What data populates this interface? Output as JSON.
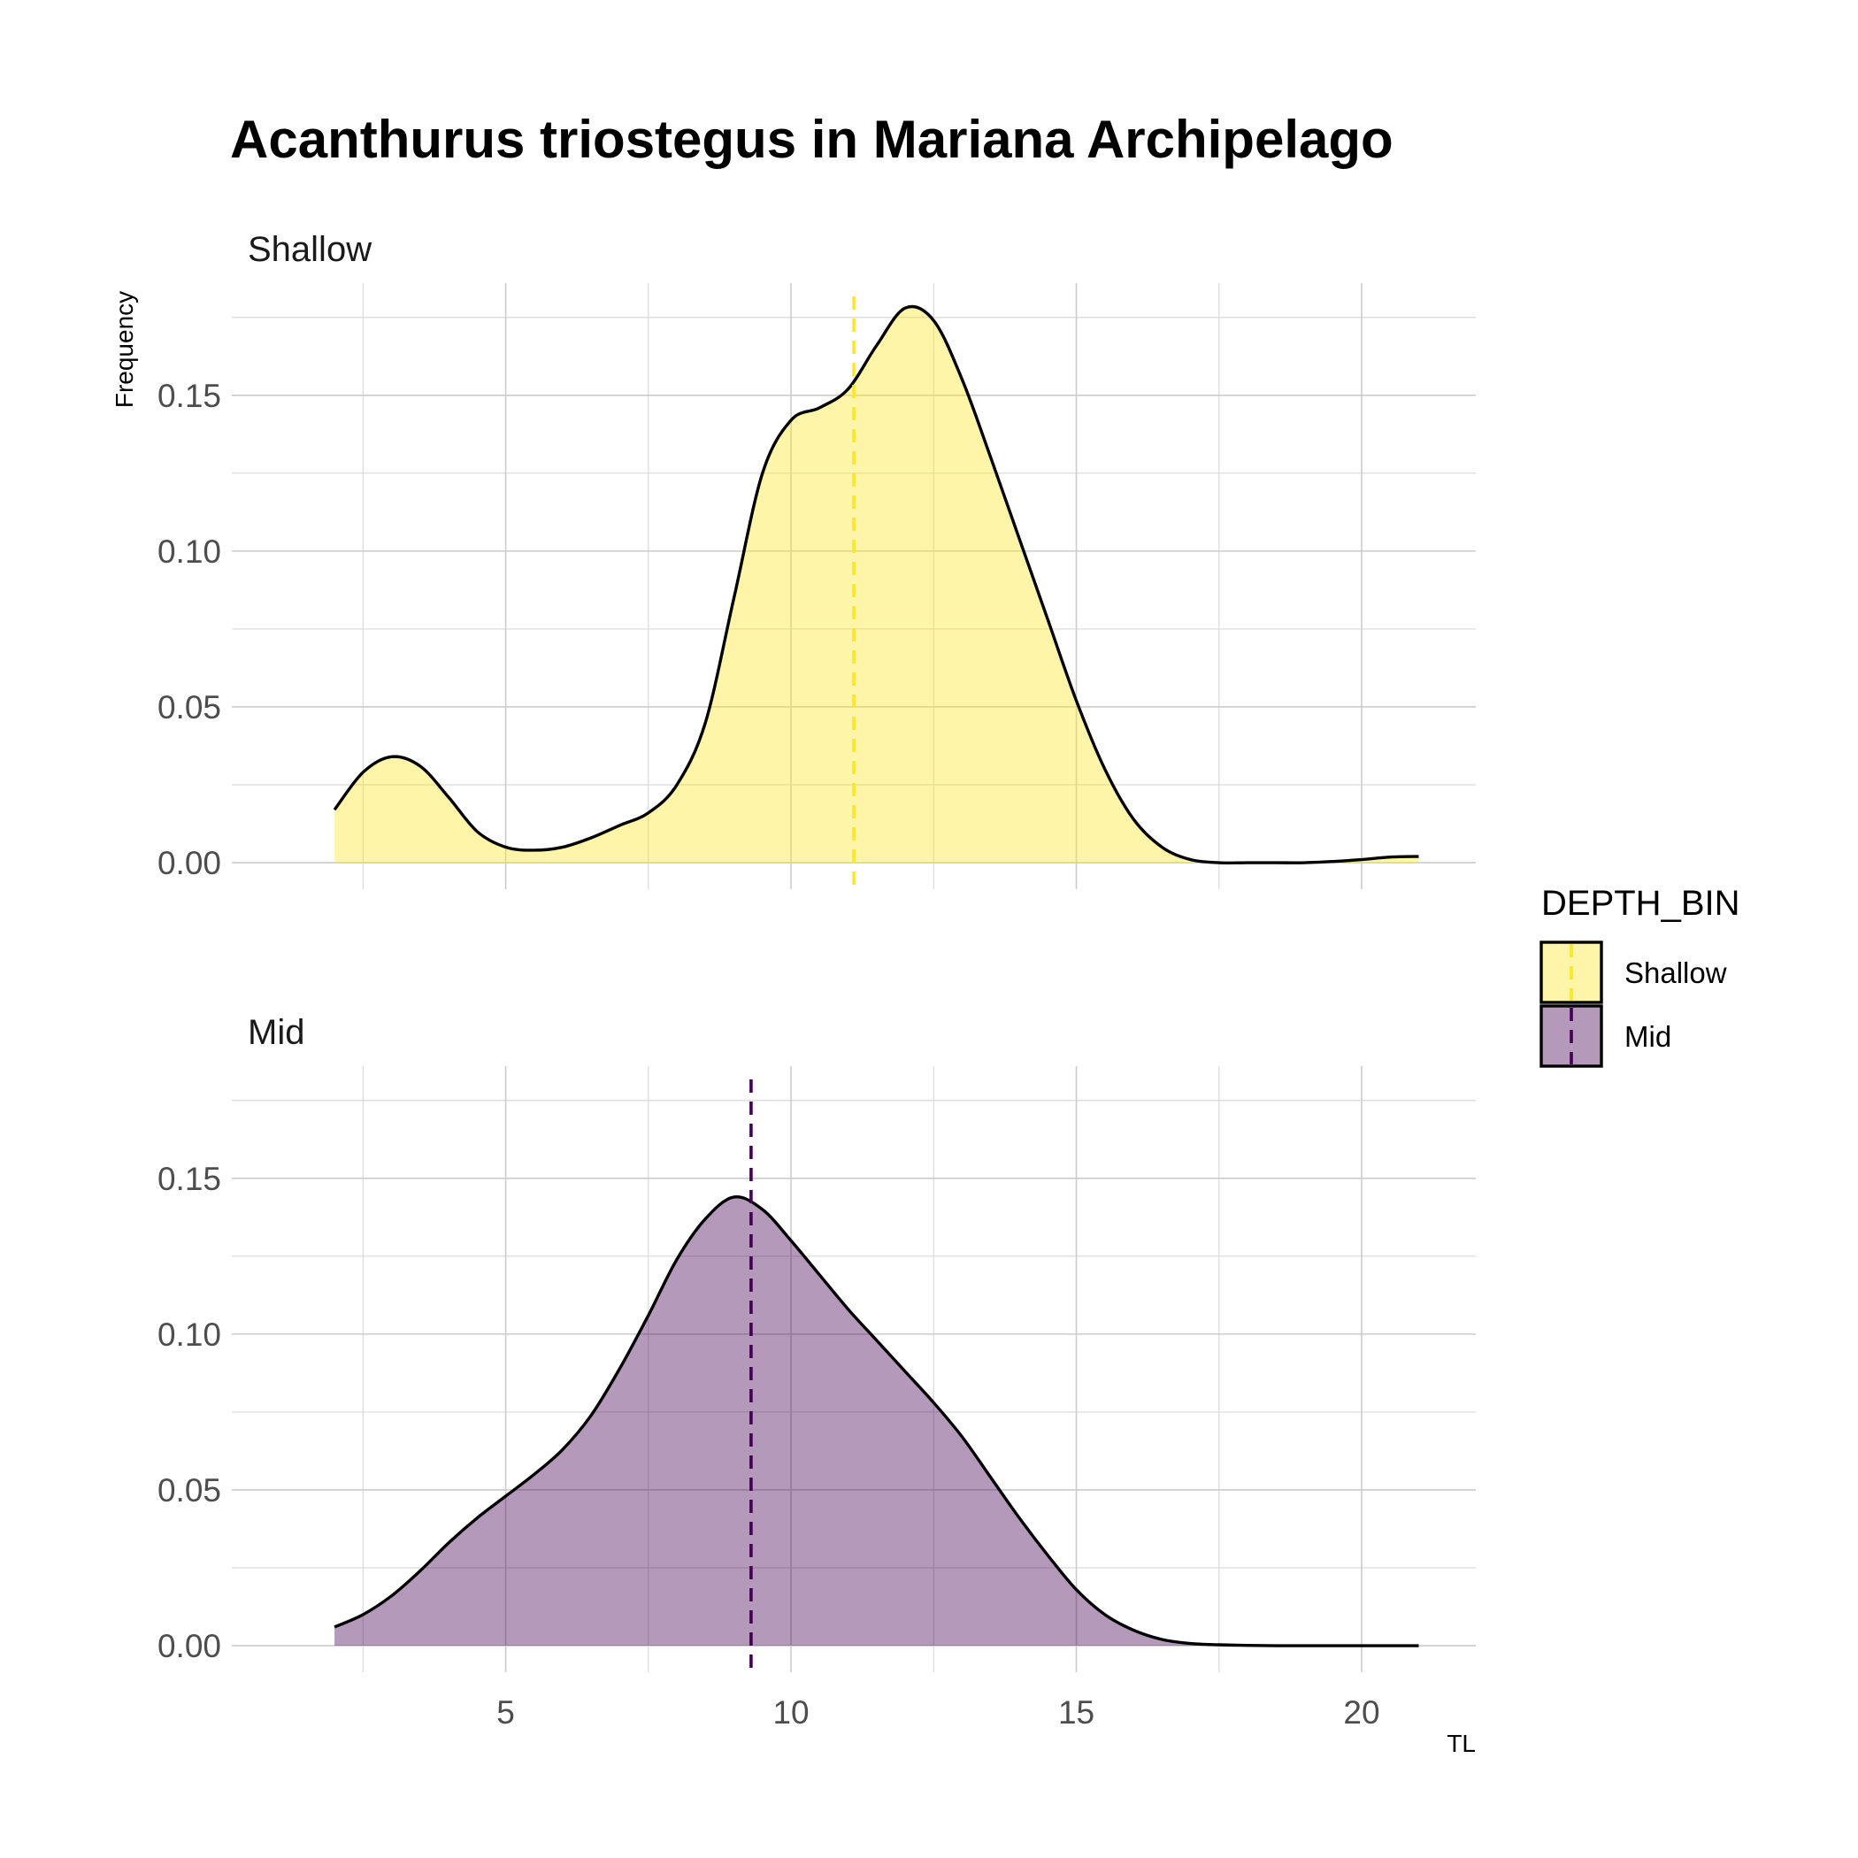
{
  "chart_data": {
    "type": "area",
    "title": "Acanthurus triostegus in Mariana Archipelago",
    "xlabel": "TL",
    "ylabel": "Frequency",
    "xlim": [
      0.2,
      22.0
    ],
    "ylim": [
      -0.0085,
      0.186
    ],
    "x_ticks": [
      5,
      10,
      15,
      20
    ],
    "x_tick_labels": [
      "5",
      "10",
      "15",
      "20"
    ],
    "y_ticks": [
      0,
      0.05,
      0.1,
      0.15
    ],
    "y_tick_labels": [
      "0.00",
      "0.05",
      "0.10",
      "0.15"
    ],
    "grid": true,
    "legend": {
      "title": "DEPTH_BIN",
      "position": "right",
      "entries": [
        {
          "label": "Shallow",
          "fill": "#FDE725",
          "line": "#FDE725"
        },
        {
          "label": "Mid",
          "fill": "#440154",
          "line": "#440154"
        }
      ]
    },
    "fill_opacity": 0.4,
    "outline_color": "#000000",
    "panels": [
      {
        "strip": "Shallow",
        "fill": "#FDE725",
        "mean_line_color": "#FDE725",
        "mean_x": 11.1,
        "x": [
          2.0,
          2.5,
          3.0,
          3.5,
          4.0,
          4.5,
          5.0,
          5.5,
          6.0,
          6.5,
          7.0,
          7.5,
          8.0,
          8.5,
          9.0,
          9.5,
          10.0,
          10.5,
          11.0,
          11.5,
          12.0,
          12.5,
          13.0,
          13.5,
          14.0,
          14.5,
          15.0,
          15.5,
          16.0,
          16.5,
          17.0,
          17.5,
          18.0,
          18.5,
          19.0,
          19.5,
          20.0,
          20.5,
          21.0
        ],
        "y": [
          0.017,
          0.029,
          0.034,
          0.031,
          0.021,
          0.01,
          0.005,
          0.004,
          0.005,
          0.008,
          0.012,
          0.016,
          0.025,
          0.045,
          0.085,
          0.125,
          0.142,
          0.146,
          0.152,
          0.166,
          0.178,
          0.174,
          0.155,
          0.13,
          0.104,
          0.078,
          0.052,
          0.03,
          0.014,
          0.005,
          0.001,
          0.0,
          0.0,
          0.0,
          0.0,
          0.0004,
          0.001,
          0.0018,
          0.002
        ]
      },
      {
        "strip": "Mid",
        "fill": "#440154",
        "mean_line_color": "#440154",
        "mean_x": 9.3,
        "x": [
          2.0,
          2.5,
          3.0,
          3.5,
          4.0,
          4.5,
          5.0,
          5.5,
          6.0,
          6.5,
          7.0,
          7.5,
          8.0,
          8.5,
          9.0,
          9.5,
          10.0,
          10.5,
          11.0,
          11.5,
          12.0,
          12.5,
          13.0,
          13.5,
          14.0,
          14.5,
          15.0,
          15.5,
          16.0,
          16.5,
          17.0,
          17.5,
          18.0,
          18.5,
          19.0,
          19.5,
          20.0,
          20.5,
          21.0
        ],
        "y": [
          0.006,
          0.01,
          0.016,
          0.024,
          0.033,
          0.041,
          0.048,
          0.055,
          0.063,
          0.074,
          0.089,
          0.106,
          0.124,
          0.137,
          0.144,
          0.14,
          0.13,
          0.119,
          0.108,
          0.098,
          0.088,
          0.078,
          0.067,
          0.054,
          0.041,
          0.029,
          0.018,
          0.01,
          0.005,
          0.002,
          0.0007,
          0.0003,
          0.0001,
          0.0,
          0.0,
          0.0,
          0.0,
          0.0,
          0.0
        ]
      }
    ]
  }
}
